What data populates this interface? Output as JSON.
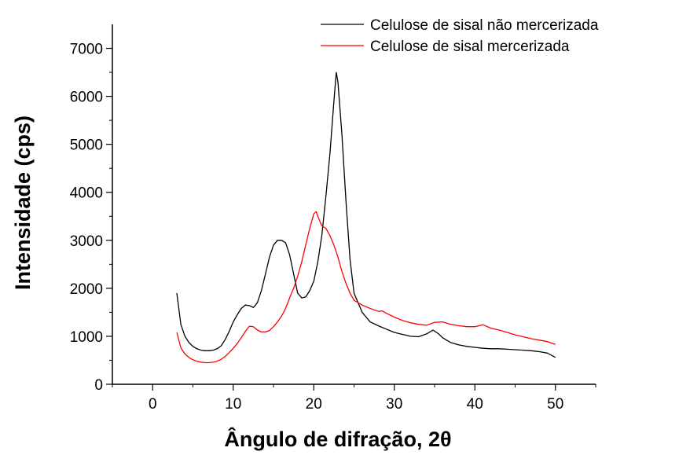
{
  "chart_data": {
    "type": "line",
    "xlabel": "Ângulo de difração, 2θ",
    "ylabel": "Intensidade (cps)",
    "xlim": [
      -5,
      55
    ],
    "ylim": [
      0,
      7500
    ],
    "xticks": [
      0,
      10,
      20,
      30,
      40,
      50
    ],
    "yticks": [
      0,
      1000,
      2000,
      3000,
      4000,
      5000,
      6000,
      7000
    ],
    "x_tick_labels": [
      "0",
      "10",
      "20",
      "30",
      "40",
      "50"
    ],
    "y_tick_labels": [
      "0",
      "1000",
      "2000",
      "3000",
      "4000",
      "5000",
      "6000",
      "7000"
    ],
    "grid": false,
    "legend_position": "top-right",
    "series": [
      {
        "name": "Celulose de sisal não mercerizada",
        "color": "#000000",
        "x": [
          3,
          3.5,
          4,
          4.5,
          5,
          5.5,
          6,
          6.5,
          7,
          7.5,
          8,
          8.5,
          9,
          9.5,
          10,
          10.5,
          11,
          11.5,
          12,
          12.5,
          13,
          13.5,
          14,
          14.5,
          15,
          15.5,
          16,
          16.5,
          17,
          17.5,
          18,
          18.5,
          19,
          19.5,
          20,
          20.5,
          21,
          21.5,
          22,
          22.5,
          22.8,
          23,
          23.5,
          24,
          24.5,
          25,
          26,
          27,
          28,
          29,
          30,
          31,
          32,
          33,
          34,
          34.8,
          35.5,
          36,
          37,
          38,
          39,
          40,
          41,
          42,
          43,
          44,
          45,
          46,
          47,
          48,
          49,
          50
        ],
        "y": [
          1900,
          1250,
          1000,
          870,
          790,
          740,
          710,
          700,
          700,
          710,
          740,
          800,
          930,
          1100,
          1300,
          1450,
          1580,
          1650,
          1640,
          1600,
          1700,
          1950,
          2300,
          2650,
          2900,
          3000,
          3000,
          2950,
          2700,
          2300,
          1900,
          1800,
          1820,
          1950,
          2150,
          2550,
          3100,
          3900,
          4800,
          5900,
          6500,
          6300,
          5200,
          3800,
          2600,
          1900,
          1500,
          1300,
          1220,
          1150,
          1080,
          1040,
          1000,
          990,
          1050,
          1130,
          1050,
          970,
          870,
          820,
          790,
          770,
          750,
          740,
          740,
          730,
          720,
          710,
          700,
          680,
          650,
          560
        ]
      },
      {
        "name": "Celulose de sisal mercerizada",
        "color": "#ff0000",
        "x": [
          3,
          3.5,
          4,
          4.5,
          5,
          5.5,
          6,
          6.5,
          7,
          7.5,
          8,
          8.5,
          9,
          9.5,
          10,
          10.5,
          11,
          11.5,
          12,
          12.5,
          13,
          13.5,
          14,
          14.5,
          15,
          15.5,
          16,
          16.5,
          17,
          17.5,
          18,
          18.5,
          19,
          19.5,
          20,
          20.3,
          20.5,
          21,
          21.5,
          22,
          22.5,
          23,
          23.5,
          24,
          24.5,
          25,
          26,
          27,
          28,
          28.5,
          29,
          30,
          31,
          32,
          33,
          34,
          35,
          36,
          37,
          38,
          39,
          40,
          41,
          42,
          43,
          44,
          45,
          46,
          47,
          48,
          49,
          50
        ],
        "y": [
          1080,
          760,
          630,
          560,
          510,
          480,
          460,
          450,
          450,
          460,
          480,
          520,
          580,
          660,
          750,
          850,
          970,
          1100,
          1210,
          1200,
          1130,
          1090,
          1090,
          1120,
          1200,
          1300,
          1420,
          1580,
          1800,
          2000,
          2250,
          2550,
          2900,
          3250,
          3550,
          3600,
          3500,
          3300,
          3250,
          3100,
          2900,
          2650,
          2350,
          2100,
          1900,
          1750,
          1650,
          1580,
          1520,
          1530,
          1480,
          1400,
          1330,
          1280,
          1250,
          1230,
          1290,
          1300,
          1250,
          1220,
          1200,
          1200,
          1240,
          1170,
          1130,
          1080,
          1030,
          990,
          950,
          920,
          890,
          830
        ]
      }
    ]
  }
}
